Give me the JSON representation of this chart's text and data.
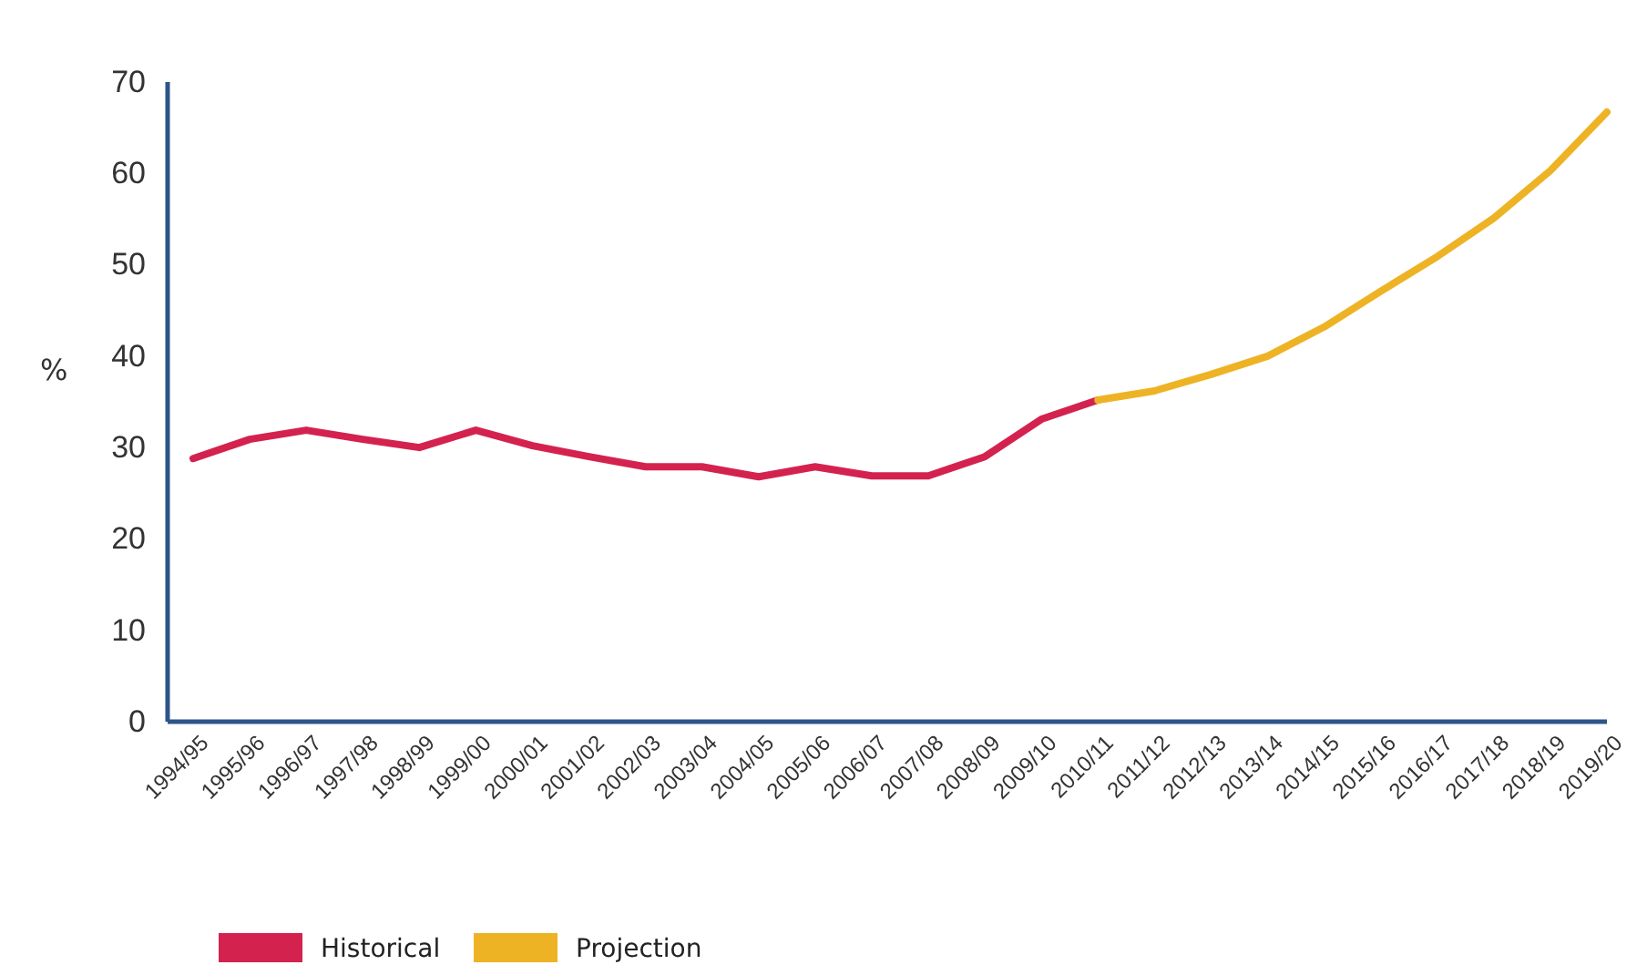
{
  "chart_data": {
    "type": "line",
    "ylabel": "%",
    "categories": [
      "1994/95",
      "1995/96",
      "1996/97",
      "1997/98",
      "1998/99",
      "1999/00",
      "2000/01",
      "2001/02",
      "2002/03",
      "2003/04",
      "2004/05",
      "2005/06",
      "2006/07",
      "2007/08",
      "2008/09",
      "2009/10",
      "2010/11",
      "2011/12",
      "2012/13",
      "2013/14",
      "2014/15",
      "2015/16",
      "2016/17",
      "2017/18",
      "2018/19",
      "2019/20"
    ],
    "series": [
      {
        "name": "Historical",
        "color": "#d4224f",
        "values": [
          28.8,
          30.9,
          31.9,
          30.9,
          30.0,
          31.9,
          30.2,
          29.0,
          27.9,
          27.9,
          26.8,
          27.9,
          26.9,
          26.9,
          29.0,
          33.1,
          35.2,
          null,
          null,
          null,
          null,
          null,
          null,
          null,
          null,
          null
        ]
      },
      {
        "name": "Projection",
        "color": "#eeb325",
        "values": [
          null,
          null,
          null,
          null,
          null,
          null,
          null,
          null,
          null,
          null,
          null,
          null,
          null,
          null,
          null,
          null,
          35.2,
          36.2,
          38.0,
          40.0,
          43.2,
          47.1,
          50.9,
          55.1,
          60.3,
          66.7
        ]
      }
    ],
    "ylim": [
      0,
      70
    ],
    "yticks": [
      0,
      10,
      20,
      30,
      40,
      50,
      60,
      70
    ],
    "grid": false,
    "legend": "bottom left",
    "marker": "none",
    "line_style": "solid"
  }
}
